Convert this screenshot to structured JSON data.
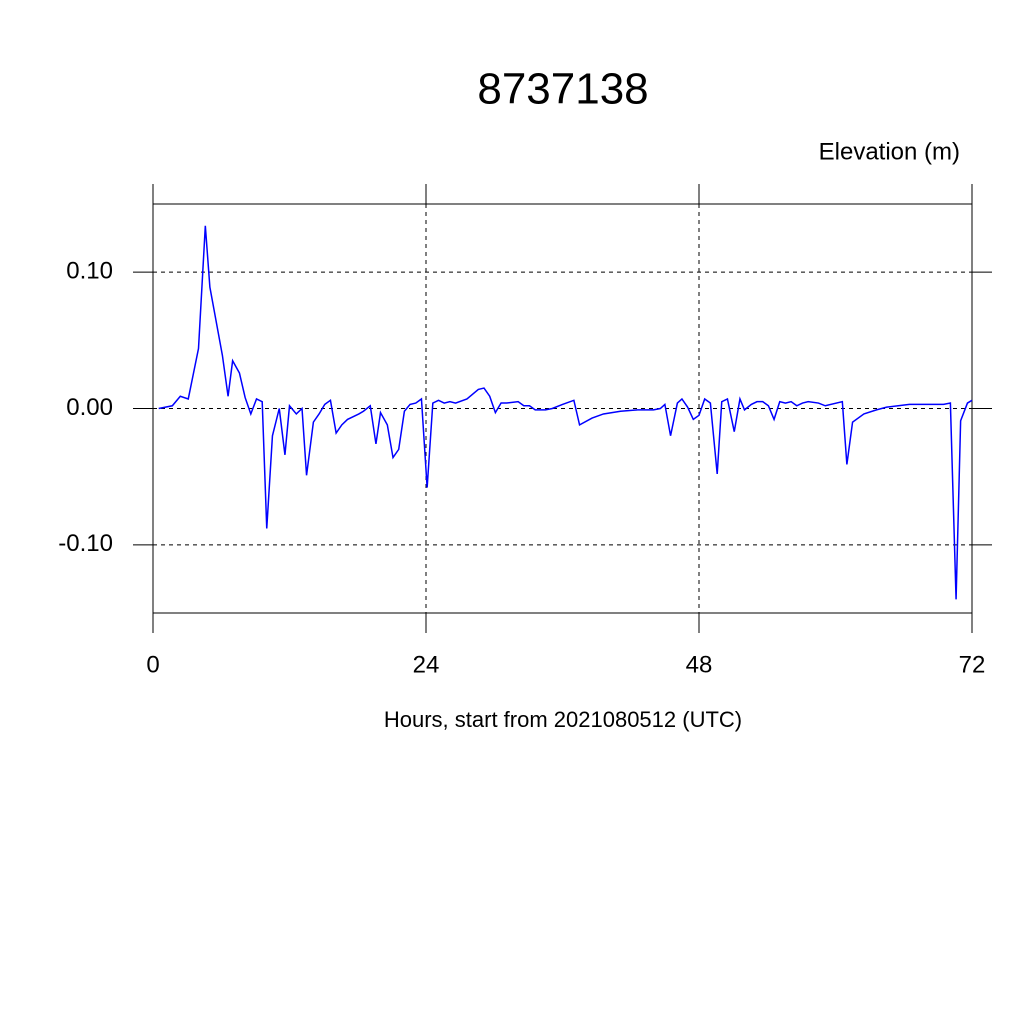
{
  "chart_data": {
    "type": "line",
    "title": "8737138",
    "ylabel": "Elevation (m)",
    "xlabel": "Hours, start from 2021080512 (UTC)",
    "xlim": [
      0,
      72
    ],
    "xticks": [
      0,
      24,
      48,
      72
    ],
    "ylim": [
      -0.15,
      0.15
    ],
    "yticks": [
      {
        "value": -0.1,
        "label": "-0.10"
      },
      {
        "value": 0,
        "label": "0.00"
      },
      {
        "value": 0.1,
        "label": "0.10"
      }
    ],
    "grid": true,
    "series": [
      {
        "color": "#0000ff",
        "x": [
          0.5,
          1.1,
          1.7,
          2.4,
          3.1,
          4.0,
          4.6,
          5.0,
          6.1,
          6.6,
          7.0,
          7.6,
          8.1,
          8.6,
          9.1,
          9.6,
          10.0,
          10.5,
          11.1,
          11.6,
          12.0,
          12.6,
          13.1,
          13.5,
          14.1,
          14.6,
          15.1,
          15.6,
          16.1,
          16.6,
          17.1,
          17.6,
          18.1,
          18.5,
          19.1,
          19.6,
          20.0,
          20.6,
          21.1,
          21.6,
          22.1,
          22.6,
          23.1,
          23.6,
          24.1,
          24.6,
          25.1,
          25.6,
          26.1,
          26.6,
          27.6,
          28.6,
          29.1,
          29.6,
          30.1,
          30.6,
          31.1,
          32.1,
          32.6,
          33.1,
          33.6,
          34.5,
          35.1,
          36.0,
          37.0,
          37.5,
          38.6,
          39.6,
          41.1,
          42.6,
          44.0,
          44.6,
          45.0,
          45.5,
          46.1,
          46.5,
          47.0,
          47.5,
          48.0,
          48.5,
          49.0,
          49.6,
          50.0,
          50.5,
          51.1,
          51.6,
          52.0,
          52.6,
          53.1,
          53.6,
          54.1,
          54.6,
          55.1,
          55.6,
          56.1,
          56.6,
          57.1,
          57.6,
          58.5,
          59.1,
          60.6,
          61.0,
          61.5,
          62.5,
          63.6,
          64.5,
          66.5,
          69.5,
          70.1,
          70.6,
          71.0,
          71.6,
          72.0
        ],
        "values": [
          0.0,
          0.001,
          0.002,
          0.009,
          0.007,
          0.044,
          0.134,
          0.089,
          0.039,
          0.009,
          0.035,
          0.026,
          0.008,
          -0.004,
          0.007,
          0.005,
          -0.088,
          -0.02,
          0.0,
          -0.034,
          0.002,
          -0.004,
          0.0,
          -0.049,
          -0.01,
          -0.004,
          0.003,
          0.006,
          -0.018,
          -0.012,
          -0.008,
          -0.006,
          -0.004,
          -0.002,
          0.002,
          -0.026,
          -0.003,
          -0.012,
          -0.036,
          -0.03,
          -0.002,
          0.003,
          0.004,
          0.007,
          -0.058,
          0.004,
          0.006,
          0.004,
          0.005,
          0.004,
          0.007,
          0.014,
          0.015,
          0.009,
          -0.003,
          0.004,
          0.004,
          0.005,
          0.002,
          0.002,
          -0.001,
          -0.001,
          0.0,
          0.003,
          0.006,
          -0.012,
          -0.007,
          -0.004,
          -0.002,
          -0.001,
          -0.001,
          0.0,
          0.003,
          -0.02,
          0.004,
          0.007,
          0.001,
          -0.008,
          -0.005,
          0.007,
          0.004,
          -0.048,
          0.005,
          0.007,
          -0.017,
          0.007,
          -0.001,
          0.003,
          0.005,
          0.005,
          0.002,
          -0.008,
          0.005,
          0.004,
          0.005,
          0.002,
          0.004,
          0.005,
          0.004,
          0.002,
          0.005,
          -0.041,
          -0.01,
          -0.004,
          -0.001,
          0.001,
          0.003,
          0.003,
          0.004,
          -0.14,
          -0.009,
          0.004,
          0.006
        ]
      }
    ]
  }
}
